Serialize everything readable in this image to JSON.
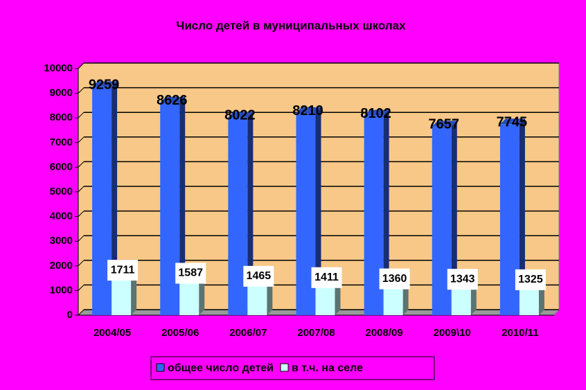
{
  "chart_data": {
    "type": "bar3d",
    "title": "Число детей в муниципальных школах",
    "categories": [
      "2004/05",
      "2005/06",
      "2006/07",
      "2007/08",
      "2008/09",
      "2009\\10",
      "2010/11"
    ],
    "series": [
      {
        "name": "общее число детей",
        "color": "#3366ff",
        "values": [
          9259,
          8626,
          8022,
          8210,
          8102,
          7657,
          7745
        ]
      },
      {
        "name": "в т.ч. на селе",
        "color": "#ccffff",
        "values": [
          1711,
          1587,
          1465,
          1411,
          1360,
          1343,
          1325
        ]
      }
    ],
    "ylim": [
      0,
      10000
    ],
    "yticks": [
      0,
      1000,
      2000,
      3000,
      4000,
      5000,
      6000,
      7000,
      8000,
      9000,
      10000
    ],
    "grid": true
  }
}
